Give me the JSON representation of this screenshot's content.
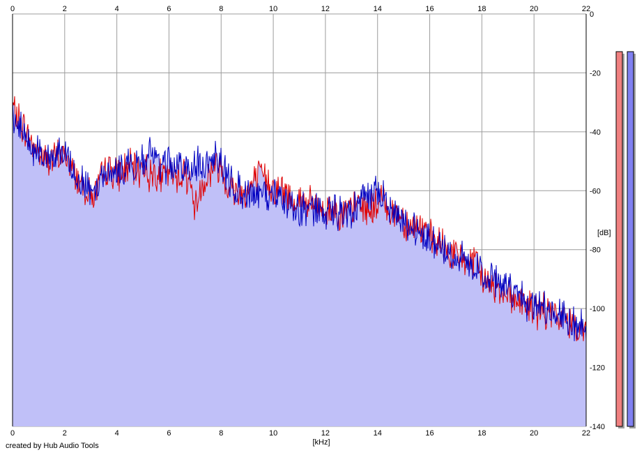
{
  "chart_data": {
    "type": "area",
    "xlabel": "[kHz]",
    "ylabel": "[dB]",
    "xlim": [
      0,
      22
    ],
    "ylim": [
      -140,
      0
    ],
    "x_ticks": [
      "0",
      "2",
      "4",
      "6",
      "8",
      "10",
      "12",
      "14",
      "16",
      "18",
      "20",
      "22"
    ],
    "y_ticks": [
      "0",
      "-20",
      "-40",
      "-60",
      "-80",
      "-100",
      "-120",
      "-140"
    ],
    "grid": true,
    "series": [
      {
        "color": "#e00000",
        "x": [
          0,
          0.25,
          0.5,
          0.75,
          1,
          1.25,
          1.5,
          1.75,
          2,
          2.25,
          2.5,
          2.75,
          3,
          3.25,
          3.5,
          3.75,
          4,
          4.25,
          4.5,
          4.75,
          5,
          5.25,
          5.5,
          5.75,
          6,
          6.25,
          6.5,
          6.75,
          7,
          7.25,
          7.5,
          7.75,
          8,
          8.25,
          8.5,
          8.75,
          9,
          9.25,
          9.5,
          9.75,
          10,
          10.25,
          10.5,
          10.75,
          11,
          11.25,
          11.5,
          11.75,
          12,
          12.25,
          12.5,
          12.75,
          13,
          13.25,
          13.5,
          13.75,
          14,
          14.25,
          14.5,
          14.75,
          15,
          15.25,
          15.5,
          15.75,
          16,
          16.25,
          16.5,
          16.75,
          17,
          17.25,
          17.5,
          17.75,
          18,
          18.25,
          18.5,
          18.75,
          19,
          19.25,
          19.5,
          19.75,
          20,
          20.25,
          20.5,
          20.75,
          21,
          21.25,
          21.5,
          21.75,
          22
        ],
        "y": [
          -32,
          -36,
          -40,
          -44,
          -47,
          -49,
          -50,
          -48,
          -48,
          -52,
          -56,
          -58,
          -62,
          -60,
          -54,
          -52,
          -55,
          -53,
          -52,
          -54,
          -51,
          -55,
          -53,
          -56,
          -54,
          -55,
          -54,
          -55,
          -66,
          -58,
          -55,
          -51,
          -52,
          -58,
          -60,
          -60,
          -61,
          -57,
          -55,
          -56,
          -59,
          -60,
          -61,
          -63,
          -63,
          -64,
          -65,
          -66,
          -67,
          -66,
          -67,
          -68,
          -67,
          -64,
          -66,
          -66,
          -65,
          -62,
          -68,
          -67,
          -70,
          -72,
          -72,
          -73,
          -76,
          -78,
          -79,
          -81,
          -82,
          -83,
          -84,
          -85,
          -89,
          -92,
          -92,
          -94,
          -94,
          -97,
          -98,
          -99,
          -100,
          -101,
          -101,
          -103,
          -103,
          -104,
          -105,
          -106,
          -107
        ]
      },
      {
        "color": "#0000c0",
        "x": [
          0,
          0.25,
          0.5,
          0.75,
          1,
          1.25,
          1.5,
          1.75,
          2,
          2.25,
          2.5,
          2.75,
          3,
          3.25,
          3.5,
          3.75,
          4,
          4.25,
          4.5,
          4.75,
          5,
          5.25,
          5.5,
          5.75,
          6,
          6.25,
          6.5,
          6.75,
          7,
          7.25,
          7.5,
          7.75,
          8,
          8.25,
          8.5,
          8.75,
          9,
          9.25,
          9.5,
          9.75,
          10,
          10.25,
          10.5,
          10.75,
          11,
          11.25,
          11.5,
          11.75,
          12,
          12.25,
          12.5,
          12.75,
          13,
          13.25,
          13.5,
          13.75,
          14,
          14.25,
          14.5,
          14.75,
          15,
          15.25,
          15.5,
          15.75,
          16,
          16.25,
          16.5,
          16.75,
          17,
          17.25,
          17.5,
          17.75,
          18,
          18.25,
          18.5,
          18.75,
          19,
          19.25,
          19.5,
          19.75,
          20,
          20.25,
          20.5,
          20.75,
          21,
          21.25,
          21.5,
          21.75,
          22
        ],
        "y": [
          -34,
          -38,
          -42,
          -45,
          -47,
          -49,
          -50,
          -47,
          -47,
          -51,
          -55,
          -57,
          -60,
          -58,
          -54,
          -52,
          -54,
          -52,
          -51,
          -52,
          -49,
          -47,
          -50,
          -52,
          -51,
          -52,
          -53,
          -52,
          -52,
          -51,
          -50,
          -48,
          -49,
          -56,
          -59,
          -60,
          -62,
          -61,
          -61,
          -62,
          -62,
          -63,
          -64,
          -65,
          -67,
          -66,
          -67,
          -67,
          -68,
          -67,
          -68,
          -68,
          -67,
          -64,
          -61,
          -61,
          -61,
          -63,
          -67,
          -68,
          -70,
          -72,
          -73,
          -74,
          -76,
          -78,
          -79,
          -81,
          -82,
          -83,
          -85,
          -86,
          -88,
          -89,
          -90,
          -92,
          -93,
          -94,
          -96,
          -98,
          -99,
          -100,
          -101,
          -102,
          -103,
          -104,
          -105,
          -106,
          -108
        ]
      }
    ]
  },
  "meters": [
    {
      "color": "#f08080"
    },
    {
      "color": "#8080f0"
    }
  ],
  "colors": {
    "fill": "#c0c0f8",
    "grid": "#9c9c9c",
    "plot_background": "#ffffff"
  },
  "credit": "created by Hub Audio Tools"
}
